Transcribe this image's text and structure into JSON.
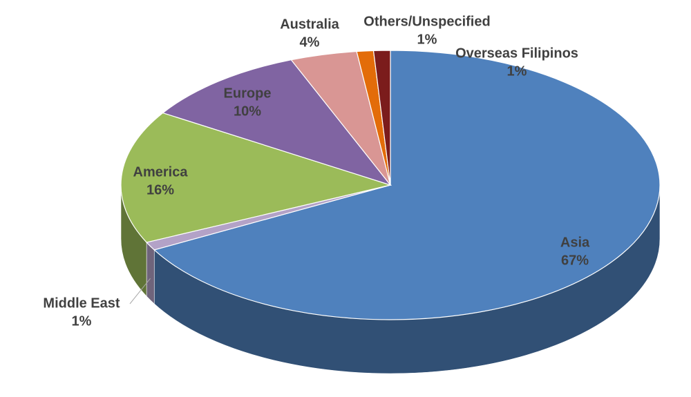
{
  "chart_data": {
    "type": "pie3d",
    "categories": [
      "Asia",
      "Middle East",
      "America",
      "Europe",
      "Australia",
      "Others/Unspecified",
      "Overseas Filipinos"
    ],
    "values": [
      67,
      1,
      16,
      10,
      4,
      1,
      1
    ],
    "value_labels": [
      "67%",
      "1%",
      "16%",
      "10%",
      "4%",
      "1%",
      "1%"
    ],
    "colors": [
      "#4f81bd",
      "#b3a2c7",
      "#9bbb59",
      "#8064a2",
      "#d99694",
      "#e36c09",
      "#7b1c1c"
    ]
  }
}
